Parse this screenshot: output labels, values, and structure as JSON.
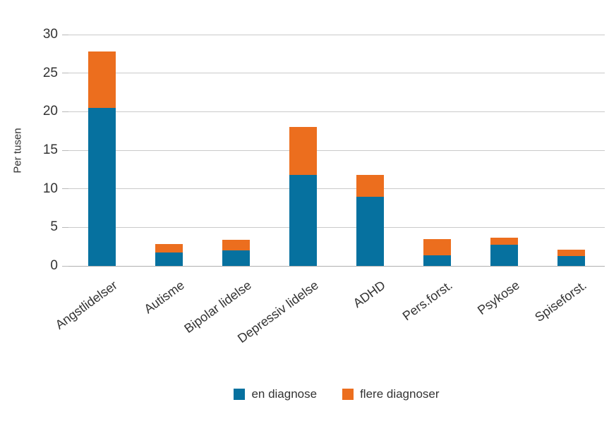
{
  "chart_data": {
    "type": "bar",
    "stacked": true,
    "title": "",
    "xlabel": "",
    "ylabel": "Per tusen",
    "ylim": [
      0,
      30
    ],
    "yticks": [
      0,
      5,
      10,
      15,
      20,
      25,
      30
    ],
    "grid": true,
    "legend_position": "bottom",
    "categories": [
      "Angstlidelser",
      "Autisme",
      "Bipolar lidelse",
      "Depressiv lidelse",
      "ADHD",
      "Pers.forst.",
      "Psykose",
      "Spiseforst."
    ],
    "series": [
      {
        "name": "en diagnose",
        "color": "#06719f",
        "values": [
          20.5,
          1.7,
          2.0,
          11.8,
          9.0,
          1.4,
          2.7,
          1.3
        ]
      },
      {
        "name": "flere diagnoser",
        "color": "#ec6e1e",
        "values": [
          7.3,
          1.1,
          1.4,
          6.2,
          2.8,
          2.1,
          1.0,
          0.8
        ]
      }
    ],
    "totals": [
      27.8,
      2.8,
      3.4,
      18.0,
      11.8,
      3.5,
      3.7,
      2.1
    ]
  },
  "colors": {
    "bar_blue": "#06719f",
    "bar_orange": "#ec6e1e",
    "gridline": "#cacaca",
    "text": "#333333",
    "background": "#ffffff"
  }
}
